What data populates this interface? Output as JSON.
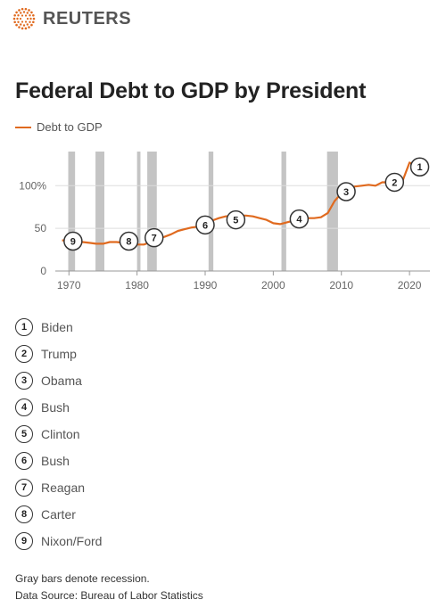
{
  "brand": {
    "name": "REUTERS"
  },
  "colors": {
    "line": "#e06a1f",
    "recession": "#c4c4c4",
    "grid": "#dddddd"
  },
  "chart_data": {
    "type": "line",
    "title": "Federal Debt to GDP by President",
    "xlabel": "",
    "ylabel": "",
    "xlim": [
      1968,
      2023
    ],
    "ylim": [
      0,
      140
    ],
    "x_ticks": [
      1970,
      1980,
      1990,
      2000,
      2010,
      2020
    ],
    "y_ticks": [
      {
        "value": 0,
        "label": "0"
      },
      {
        "value": 50,
        "label": "50"
      },
      {
        "value": 100,
        "label": "100%"
      }
    ],
    "series": [
      {
        "name": "Debt to GDP",
        "x": [
          1969,
          1970,
          1971,
          1972,
          1973,
          1974,
          1975,
          1976,
          1977,
          1978,
          1979,
          1980,
          1981,
          1982,
          1983,
          1984,
          1985,
          1986,
          1987,
          1988,
          1989,
          1990,
          1991,
          1992,
          1993,
          1994,
          1995,
          1996,
          1997,
          1998,
          1999,
          2000,
          2001,
          2002,
          2003,
          2004,
          2005,
          2006,
          2007,
          2008,
          2009,
          2010,
          2011,
          2012,
          2013,
          2014,
          2015,
          2016,
          2017,
          2018,
          2019,
          2020,
          2021
        ],
        "y": [
          36,
          35,
          35,
          34,
          33,
          32,
          32,
          34,
          34,
          33,
          32,
          31,
          31,
          34,
          38,
          40,
          43,
          47,
          49,
          51,
          52,
          55,
          59,
          62,
          64,
          65,
          65,
          65,
          64,
          62,
          60,
          56,
          55,
          57,
          59,
          61,
          62,
          62,
          63,
          68,
          82,
          91,
          96,
          99,
          100,
          101,
          100,
          104,
          104,
          104,
          106,
          127,
          123
        ]
      }
    ],
    "recessions": [
      [
        1969.9,
        1970.9
      ],
      [
        1973.9,
        1975.2
      ],
      [
        1980.0,
        1980.5
      ],
      [
        1981.5,
        1982.9
      ],
      [
        1990.5,
        1991.2
      ],
      [
        2001.2,
        2001.9
      ],
      [
        2007.9,
        2009.5
      ]
    ],
    "grid": true,
    "legend": "top-left",
    "annotations": [
      {
        "label": "1",
        "x": 2021.5,
        "y": 122
      },
      {
        "label": "2",
        "x": 2017.8,
        "y": 104
      },
      {
        "label": "3",
        "x": 2010.7,
        "y": 93
      },
      {
        "label": "4",
        "x": 2003.8,
        "y": 61
      },
      {
        "label": "5",
        "x": 1994.5,
        "y": 60
      },
      {
        "label": "6",
        "x": 1990.0,
        "y": 54
      },
      {
        "label": "7",
        "x": 1982.5,
        "y": 39
      },
      {
        "label": "8",
        "x": 1978.8,
        "y": 35
      },
      {
        "label": "9",
        "x": 1970.6,
        "y": 35
      }
    ]
  },
  "key": [
    {
      "num": "1",
      "name": "Biden"
    },
    {
      "num": "2",
      "name": "Trump"
    },
    {
      "num": "3",
      "name": "Obama"
    },
    {
      "num": "4",
      "name": "Bush"
    },
    {
      "num": "5",
      "name": "Clinton"
    },
    {
      "num": "6",
      "name": "Bush"
    },
    {
      "num": "7",
      "name": "Reagan"
    },
    {
      "num": "8",
      "name": "Carter"
    },
    {
      "num": "9",
      "name": "Nixon/Ford"
    }
  ],
  "footnotes": {
    "recession": "Gray bars denote recession.",
    "source": "Data Source: Bureau of Labor Statistics"
  }
}
